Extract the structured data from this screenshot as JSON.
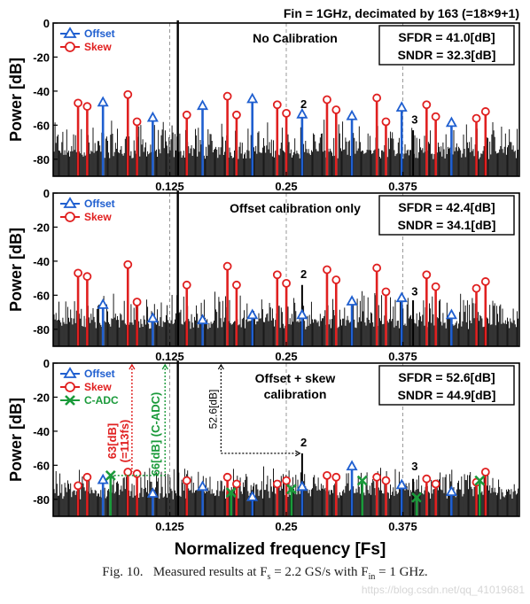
{
  "figure_title": "Fin = 1GHz, decimated by 163 (=18×9+1)",
  "x_axis_label": "Normalized frequency [Fs]",
  "caption": {
    "fig_label": "Fig. 10.",
    "text": "Measured results at F",
    "fs_sub": "s",
    "text2": " = 2.2 GS/s with F",
    "fin_sub": "in",
    "text3": " = 1 GHz."
  },
  "watermark": "https://blog.csdn.net/qq_41019681",
  "colors": {
    "offset": "#1f5fd0",
    "skew": "#e02020",
    "cadc": "#1a9a3a",
    "signal": "#000000",
    "noise": "#000000",
    "grid": "#9a9a9a"
  },
  "legend": {
    "offset": "Offset",
    "skew": "Skew",
    "cadc": "C-ADC"
  },
  "panels": [
    {
      "title": "No Calibration",
      "sfdr": "SFDR = 41.0[dB]",
      "sndr": "SNDR = 32.3[dB]",
      "harmonic_labels": [
        {
          "text": "2",
          "x": 0.263,
          "y": -50
        },
        {
          "text": "3",
          "x": 0.382,
          "y": -59
        }
      ],
      "tick_position": "bottom"
    },
    {
      "title": "Offset calibration only",
      "sfdr": "SFDR = 42.4[dB]",
      "sndr": "SNDR = 34.1[dB]",
      "harmonic_labels": [
        {
          "text": "2",
          "x": 0.263,
          "y": -50
        },
        {
          "text": "3",
          "x": 0.382,
          "y": -60
        }
      ],
      "tick_position": "bottom"
    },
    {
      "title": "Offset + skew",
      "title2": "calibration",
      "sfdr": "SFDR = 52.6[dB]",
      "sndr": "SNDR = 44.9[dB]",
      "harmonic_labels": [
        {
          "text": "2",
          "x": 0.263,
          "y": -49
        },
        {
          "text": "3",
          "x": 0.382,
          "y": -63
        }
      ],
      "tick_position": "bottom",
      "annotations": {
        "red": "63[dB]",
        "red2": "(=113fs)",
        "green": "66[dB] (C-ADC)",
        "black": "52.6[dB]"
      }
    }
  ],
  "chart_data": [
    {
      "type": "line",
      "title": "No Calibration",
      "ylabel": "Power [dB]",
      "xlabel": "",
      "xlim": [
        0,
        0.5
      ],
      "ylim": [
        -90,
        0
      ],
      "xticks": [
        0.125,
        0.25,
        0.375
      ],
      "yticks": [
        0,
        -20,
        -40,
        -60,
        -80
      ],
      "grid": "vertical dashed at x ticks",
      "legend_position": "top-left",
      "signal": {
        "x": 0.1337,
        "y": 0
      },
      "harmonic2": {
        "x": 0.267,
        "y": -54
      },
      "harmonic3": {
        "x": 0.386,
        "y": -63
      },
      "series": [
        {
          "name": "Offset",
          "marker": "triangle",
          "points": [
            [
              0.0534,
              -47
            ],
            [
              0.1068,
              -56
            ],
            [
              0.1602,
              -49
            ],
            [
              0.2136,
              -45
            ],
            [
              0.267,
              -54
            ],
            [
              0.3204,
              -55
            ],
            [
              0.3738,
              -50
            ],
            [
              0.4272,
              -59
            ]
          ]
        },
        {
          "name": "Skew",
          "marker": "circle",
          "points": [
            [
              0.0267,
              -47
            ],
            [
              0.0365,
              -49
            ],
            [
              0.0801,
              -42
            ],
            [
              0.0899,
              -58
            ],
            [
              0.1433,
              -54
            ],
            [
              0.1869,
              -43
            ],
            [
              0.1967,
              -54
            ],
            [
              0.2403,
              -48
            ],
            [
              0.2501,
              -53
            ],
            [
              0.2937,
              -45
            ],
            [
              0.3035,
              -51
            ],
            [
              0.3471,
              -44
            ],
            [
              0.3569,
              -58
            ],
            [
              0.4005,
              -48
            ],
            [
              0.4103,
              -55
            ],
            [
              0.4539,
              -56
            ],
            [
              0.4637,
              -52
            ]
          ]
        }
      ]
    },
    {
      "type": "line",
      "title": "Offset calibration only",
      "ylabel": "Power [dB]",
      "xlabel": "",
      "xlim": [
        0,
        0.5
      ],
      "ylim": [
        -90,
        0
      ],
      "xticks": [
        0.125,
        0.25,
        0.375
      ],
      "yticks": [
        0,
        -20,
        -40,
        -60,
        -80
      ],
      "grid": "vertical dashed at x ticks",
      "legend_position": "top-left",
      "signal": {
        "x": 0.1337,
        "y": 0
      },
      "harmonic2": {
        "x": 0.267,
        "y": -54
      },
      "harmonic3": {
        "x": 0.386,
        "y": -63
      },
      "series": [
        {
          "name": "Offset",
          "marker": "triangle",
          "points": [
            [
              0.0534,
              -66
            ],
            [
              0.1068,
              -74
            ],
            [
              0.1602,
              -75
            ],
            [
              0.2136,
              -72
            ],
            [
              0.267,
              -72
            ],
            [
              0.3204,
              -64
            ],
            [
              0.3738,
              -62
            ],
            [
              0.4272,
              -72
            ]
          ]
        },
        {
          "name": "Skew",
          "marker": "circle",
          "points": [
            [
              0.0267,
              -47
            ],
            [
              0.0365,
              -49
            ],
            [
              0.0801,
              -42
            ],
            [
              0.0899,
              -64
            ],
            [
              0.1433,
              -54
            ],
            [
              0.1869,
              -43
            ],
            [
              0.1967,
              -54
            ],
            [
              0.2403,
              -48
            ],
            [
              0.2501,
              -53
            ],
            [
              0.2937,
              -45
            ],
            [
              0.3035,
              -51
            ],
            [
              0.3471,
              -44
            ],
            [
              0.3569,
              -58
            ],
            [
              0.4005,
              -48
            ],
            [
              0.4103,
              -55
            ],
            [
              0.4539,
              -56
            ],
            [
              0.4637,
              -52
            ]
          ]
        }
      ]
    },
    {
      "type": "line",
      "title": "Offset + skew calibration",
      "ylabel": "Power [dB]",
      "xlabel": "Normalized frequency [Fs]",
      "xlim": [
        0,
        0.5
      ],
      "ylim": [
        -90,
        0
      ],
      "xticks": [
        0.125,
        0.25,
        0.375
      ],
      "yticks": [
        0,
        -20,
        -40,
        -60,
        -80
      ],
      "grid": "vertical dashed at x ticks",
      "legend_position": "top-left",
      "signal": {
        "x": 0.1337,
        "y": 0
      },
      "harmonic2": {
        "x": 0.267,
        "y": -53
      },
      "harmonic3": {
        "x": 0.386,
        "y": -68
      },
      "series": [
        {
          "name": "Offset",
          "marker": "triangle",
          "points": [
            [
              0.0534,
              -69
            ],
            [
              0.1068,
              -77
            ],
            [
              0.1602,
              -73
            ],
            [
              0.2136,
              -79
            ],
            [
              0.267,
              -73
            ],
            [
              0.3204,
              -61
            ],
            [
              0.3738,
              -72
            ],
            [
              0.4272,
              -76
            ]
          ]
        },
        {
          "name": "Skew",
          "marker": "circle",
          "points": [
            [
              0.0267,
              -72
            ],
            [
              0.0365,
              -67
            ],
            [
              0.0801,
              -64
            ],
            [
              0.0899,
              -65
            ],
            [
              0.1433,
              -69
            ],
            [
              0.1869,
              -67
            ],
            [
              0.1967,
              -71
            ],
            [
              0.2403,
              -71
            ],
            [
              0.2501,
              -69
            ],
            [
              0.2937,
              -66
            ],
            [
              0.3035,
              -67
            ],
            [
              0.3471,
              -67
            ],
            [
              0.3569,
              -69
            ],
            [
              0.4005,
              -68
            ],
            [
              0.4103,
              -71
            ],
            [
              0.4539,
              -70
            ],
            [
              0.4637,
              -64
            ]
          ]
        },
        {
          "name": "C-ADC",
          "marker": "x",
          "points": [
            [
              0.0616,
              -66
            ],
            [
              0.1908,
              -76
            ],
            [
              0.2556,
              -74
            ],
            [
              0.3315,
              -69
            ],
            [
              0.3898,
              -79
            ],
            [
              0.4575,
              -69
            ]
          ]
        }
      ]
    }
  ]
}
